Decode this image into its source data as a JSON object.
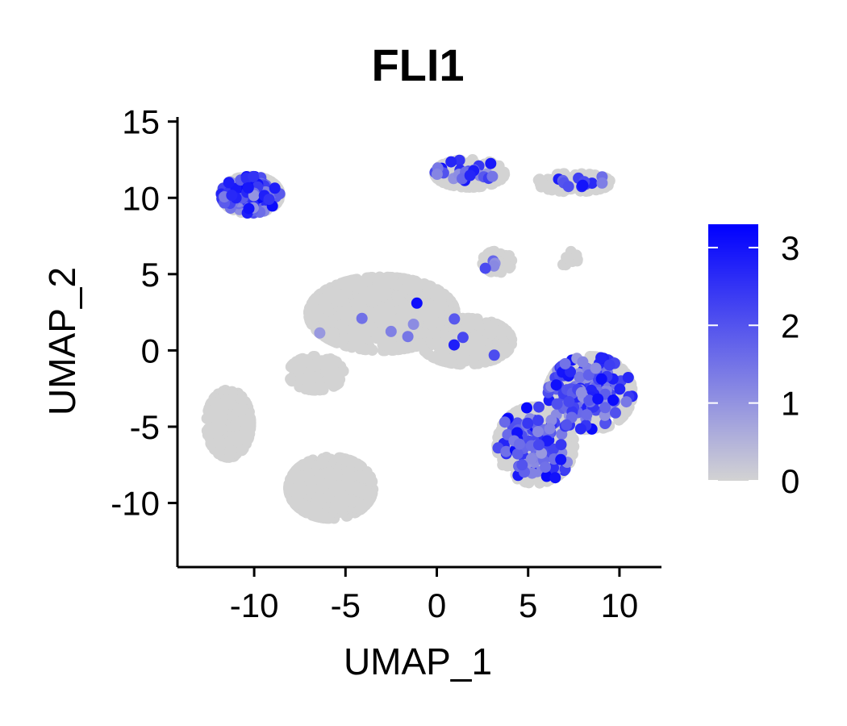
{
  "chart_data": {
    "type": "scatter",
    "title": "FLI1",
    "xlabel": "UMAP_1",
    "ylabel": "UMAP_2",
    "xlim": [
      -14.2,
      12.3
    ],
    "ylim": [
      -14.2,
      15.3
    ],
    "xticks": [
      -10,
      -5,
      0,
      5,
      10
    ],
    "yticks": [
      -10,
      -5,
      0,
      5,
      10,
      15
    ],
    "xtick_labels": [
      "-10",
      "-5",
      "0",
      "5",
      "10"
    ],
    "ytick_labels": [
      "-10",
      "-5",
      "0",
      "5",
      "10",
      "15"
    ],
    "grid": false,
    "legend_placement": "right",
    "color_scale": {
      "low_color": "#d3d3d3",
      "high_color": "#0000ff",
      "min": 0,
      "max": 3.3,
      "ticks": [
        0,
        1,
        2,
        3
      ],
      "tick_labels": [
        "0",
        "1",
        "2",
        "3"
      ]
    },
    "clusters": [
      {
        "cx": -10.2,
        "cy": 10.2,
        "rx": 1.6,
        "ry": 1.2,
        "n": 460,
        "expr_frac": 0.22
      },
      {
        "cx": 1.8,
        "cy": 11.6,
        "rx": 1.9,
        "ry": 0.9,
        "n": 320,
        "expr_frac": 0.08
      },
      {
        "cx": 7.5,
        "cy": 11.0,
        "rx": 2.0,
        "ry": 0.6,
        "n": 160,
        "expr_frac": 0.12
      },
      {
        "cx": 3.3,
        "cy": 5.8,
        "rx": 0.8,
        "ry": 0.7,
        "n": 90,
        "expr_frac": 0.05
      },
      {
        "cx": 7.2,
        "cy": 6.0,
        "rx": 0.5,
        "ry": 0.5,
        "n": 18,
        "expr_frac": 0.0
      },
      {
        "cx": -3.0,
        "cy": 2.4,
        "rx": 4.0,
        "ry": 2.4,
        "n": 1100,
        "expr_frac": 0.004
      },
      {
        "cx": 1.6,
        "cy": 0.6,
        "rx": 2.5,
        "ry": 1.5,
        "n": 420,
        "expr_frac": 0.01
      },
      {
        "cx": -6.6,
        "cy": -1.5,
        "rx": 1.5,
        "ry": 1.1,
        "n": 160,
        "expr_frac": 0.0
      },
      {
        "cx": -11.4,
        "cy": -4.8,
        "rx": 1.2,
        "ry": 2.2,
        "n": 360,
        "expr_frac": 0.0
      },
      {
        "cx": -5.8,
        "cy": -9.0,
        "rx": 2.3,
        "ry": 2.0,
        "n": 700,
        "expr_frac": 0.002
      },
      {
        "cx": 8.4,
        "cy": -2.8,
        "rx": 2.3,
        "ry": 2.4,
        "n": 620,
        "expr_frac": 0.26
      },
      {
        "cx": 5.4,
        "cy": -6.2,
        "rx": 2.1,
        "ry": 2.5,
        "n": 520,
        "expr_frac": 0.22
      }
    ]
  }
}
